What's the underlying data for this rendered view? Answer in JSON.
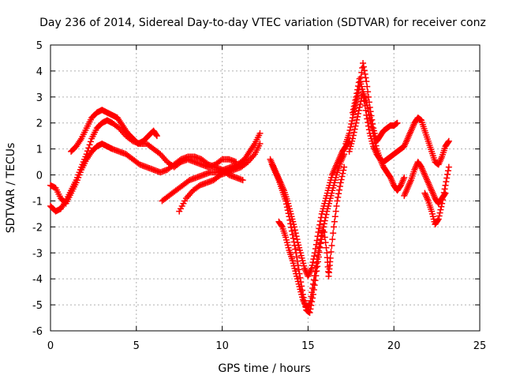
{
  "chart_data": {
    "type": "scatter",
    "title": "Day 236 of 2014, Sidereal Day-to-day VTEC variation (SDTVAR) for receiver conz",
    "xlabel": "GPS time / hours",
    "ylabel": "SDTVAR / TECUs",
    "xlim": [
      0,
      25
    ],
    "ylim": [
      -6,
      5
    ],
    "xticks": [
      0,
      5,
      10,
      15,
      20,
      25
    ],
    "yticks": [
      -6,
      -5,
      -4,
      -3,
      -2,
      -1,
      0,
      1,
      2,
      3,
      4,
      5
    ],
    "grid": true,
    "marker": "+",
    "color": "#ff0000",
    "series": [
      {
        "name": "s1",
        "points": [
          [
            0.0,
            -0.4
          ],
          [
            0.3,
            -0.5
          ],
          [
            0.6,
            -0.9
          ],
          [
            0.9,
            -1.1
          ],
          [
            1.2,
            -0.7
          ],
          [
            1.5,
            -0.3
          ],
          [
            1.8,
            0.2
          ],
          [
            2.1,
            0.6
          ],
          [
            2.4,
            0.9
          ],
          [
            2.7,
            1.1
          ],
          [
            3.0,
            1.2
          ],
          [
            3.3,
            1.1
          ],
          [
            3.6,
            1.0
          ],
          [
            4.0,
            0.9
          ],
          [
            4.4,
            0.8
          ],
          [
            4.8,
            0.6
          ],
          [
            5.2,
            0.4
          ],
          [
            5.6,
            0.3
          ],
          [
            6.0,
            0.2
          ],
          [
            6.4,
            0.1
          ],
          [
            6.8,
            0.2
          ],
          [
            7.2,
            0.4
          ],
          [
            7.6,
            0.6
          ],
          [
            8.0,
            0.7
          ],
          [
            8.4,
            0.7
          ],
          [
            8.8,
            0.6
          ],
          [
            9.2,
            0.4
          ],
          [
            9.6,
            0.3
          ],
          [
            10.0,
            0.2
          ],
          [
            10.4,
            0.0
          ],
          [
            10.8,
            -0.1
          ],
          [
            11.2,
            -0.2
          ]
        ]
      },
      {
        "name": "s2",
        "points": [
          [
            0.0,
            -1.2
          ],
          [
            0.3,
            -1.4
          ],
          [
            0.6,
            -1.3
          ],
          [
            0.9,
            -1.0
          ],
          [
            1.2,
            -0.6
          ],
          [
            1.5,
            -0.2
          ],
          [
            1.8,
            0.3
          ],
          [
            2.1,
            0.8
          ],
          [
            2.4,
            1.4
          ],
          [
            2.7,
            1.8
          ],
          [
            3.0,
            2.0
          ],
          [
            3.3,
            2.1
          ],
          [
            3.6,
            2.0
          ],
          [
            4.0,
            1.8
          ],
          [
            4.4,
            1.5
          ],
          [
            4.8,
            1.3
          ],
          [
            5.2,
            1.2
          ],
          [
            5.6,
            1.2
          ],
          [
            6.0,
            1.0
          ],
          [
            6.4,
            0.8
          ],
          [
            6.8,
            0.5
          ],
          [
            7.2,
            0.3
          ],
          [
            7.6,
            0.5
          ],
          [
            8.0,
            0.6
          ],
          [
            8.4,
            0.5
          ],
          [
            8.8,
            0.4
          ],
          [
            9.2,
            0.3
          ],
          [
            9.6,
            0.4
          ],
          [
            10.0,
            0.6
          ],
          [
            10.4,
            0.6
          ],
          [
            10.8,
            0.5
          ]
        ]
      },
      {
        "name": "s3",
        "points": [
          [
            1.2,
            0.9
          ],
          [
            1.5,
            1.1
          ],
          [
            1.8,
            1.4
          ],
          [
            2.1,
            1.8
          ],
          [
            2.4,
            2.2
          ],
          [
            2.7,
            2.4
          ],
          [
            3.0,
            2.5
          ],
          [
            3.3,
            2.4
          ],
          [
            3.6,
            2.3
          ],
          [
            3.9,
            2.2
          ],
          [
            4.2,
            1.9
          ],
          [
            4.5,
            1.6
          ],
          [
            4.8,
            1.4
          ],
          [
            5.1,
            1.2
          ],
          [
            5.4,
            1.3
          ],
          [
            5.7,
            1.5
          ],
          [
            6.0,
            1.7
          ],
          [
            6.2,
            1.5
          ]
        ]
      },
      {
        "name": "s4",
        "points": [
          [
            6.5,
            -1.0
          ],
          [
            6.9,
            -0.8
          ],
          [
            7.3,
            -0.6
          ],
          [
            7.7,
            -0.4
          ],
          [
            8.1,
            -0.2
          ],
          [
            8.5,
            -0.1
          ],
          [
            8.9,
            0.0
          ],
          [
            9.3,
            0.1
          ],
          [
            9.7,
            0.1
          ],
          [
            10.1,
            0.2
          ],
          [
            10.5,
            0.3
          ],
          [
            10.9,
            0.4
          ],
          [
            11.3,
            0.6
          ],
          [
            11.6,
            0.9
          ],
          [
            11.9,
            1.2
          ],
          [
            12.2,
            1.6
          ]
        ]
      },
      {
        "name": "s5",
        "points": [
          [
            7.5,
            -1.4
          ],
          [
            7.9,
            -0.9
          ],
          [
            8.3,
            -0.6
          ],
          [
            8.7,
            -0.4
          ],
          [
            9.1,
            -0.3
          ],
          [
            9.5,
            -0.2
          ],
          [
            9.9,
            0.0
          ],
          [
            10.3,
            0.1
          ],
          [
            10.7,
            0.2
          ],
          [
            11.1,
            0.3
          ],
          [
            11.5,
            0.5
          ],
          [
            11.9,
            0.8
          ],
          [
            12.2,
            1.2
          ]
        ]
      },
      {
        "name": "s6",
        "points": [
          [
            12.8,
            0.6
          ],
          [
            13.0,
            0.3
          ],
          [
            13.2,
            0.0
          ],
          [
            13.4,
            -0.3
          ],
          [
            13.6,
            -0.6
          ],
          [
            13.8,
            -1.0
          ],
          [
            14.0,
            -1.5
          ],
          [
            14.2,
            -2.0
          ],
          [
            14.4,
            -2.6
          ],
          [
            14.6,
            -3.1
          ],
          [
            14.8,
            -3.6
          ],
          [
            15.0,
            -3.9
          ],
          [
            15.2,
            -3.6
          ],
          [
            15.4,
            -3.0
          ],
          [
            15.6,
            -2.2
          ],
          [
            15.8,
            -1.5
          ],
          [
            16.0,
            -1.0
          ],
          [
            16.2,
            -0.5
          ],
          [
            16.4,
            0.0
          ],
          [
            16.6,
            0.3
          ],
          [
            16.8,
            0.6
          ],
          [
            17.0,
            0.9
          ],
          [
            17.2,
            1.1
          ],
          [
            17.4,
            1.3
          ]
        ]
      },
      {
        "name": "s7",
        "points": [
          [
            12.9,
            0.4
          ],
          [
            13.1,
            0.1
          ],
          [
            13.3,
            -0.2
          ],
          [
            13.5,
            -0.6
          ],
          [
            13.7,
            -1.0
          ],
          [
            13.9,
            -1.6
          ],
          [
            14.1,
            -2.3
          ],
          [
            14.3,
            -3.0
          ],
          [
            14.5,
            -3.8
          ],
          [
            14.7,
            -4.6
          ],
          [
            14.9,
            -5.2
          ],
          [
            15.1,
            -5.3
          ],
          [
            15.3,
            -4.6
          ],
          [
            15.5,
            -3.7
          ],
          [
            15.7,
            -2.8
          ],
          [
            15.9,
            -2.0
          ],
          [
            16.1,
            -1.4
          ],
          [
            16.3,
            -0.9
          ],
          [
            16.5,
            -0.4
          ],
          [
            16.7,
            0.1
          ],
          [
            16.9,
            0.5
          ],
          [
            17.1,
            0.8
          ]
        ]
      },
      {
        "name": "s8",
        "points": [
          [
            13.3,
            -1.8
          ],
          [
            13.5,
            -2.0
          ],
          [
            13.7,
            -2.4
          ],
          [
            13.9,
            -2.9
          ],
          [
            14.1,
            -3.3
          ],
          [
            14.3,
            -3.8
          ],
          [
            14.5,
            -4.3
          ],
          [
            14.7,
            -4.8
          ],
          [
            14.9,
            -5.1
          ],
          [
            15.1,
            -5.0
          ],
          [
            15.3,
            -4.2
          ],
          [
            15.5,
            -3.4
          ],
          [
            15.7,
            -2.6
          ],
          [
            15.9,
            -2.0
          ],
          [
            16.1,
            -3.0
          ],
          [
            16.2,
            -3.9
          ],
          [
            16.3,
            -3.2
          ],
          [
            16.5,
            -2.0
          ],
          [
            16.7,
            -1.0
          ],
          [
            16.9,
            -0.3
          ],
          [
            17.1,
            0.3
          ]
        ]
      },
      {
        "name": "s9",
        "points": [
          [
            17.2,
            1.2
          ],
          [
            17.4,
            1.6
          ],
          [
            17.6,
            2.2
          ],
          [
            17.8,
            2.8
          ],
          [
            18.0,
            3.4
          ],
          [
            18.2,
            4.3
          ],
          [
            18.4,
            3.6
          ],
          [
            18.6,
            2.6
          ],
          [
            18.8,
            1.8
          ],
          [
            19.0,
            1.3
          ],
          [
            19.2,
            1.5
          ],
          [
            19.4,
            1.7
          ],
          [
            19.6,
            1.8
          ],
          [
            19.8,
            1.9
          ],
          [
            20.0,
            1.9
          ],
          [
            20.2,
            2.0
          ]
        ]
      },
      {
        "name": "s10",
        "points": [
          [
            17.4,
            0.9
          ],
          [
            17.6,
            1.4
          ],
          [
            17.8,
            2.0
          ],
          [
            18.0,
            2.6
          ],
          [
            18.2,
            3.2
          ],
          [
            18.4,
            2.8
          ],
          [
            18.6,
            2.2
          ],
          [
            18.8,
            1.6
          ],
          [
            19.0,
            1.0
          ],
          [
            19.2,
            0.6
          ],
          [
            19.4,
            0.3
          ],
          [
            19.6,
            0.1
          ],
          [
            19.8,
            -0.1
          ],
          [
            20.0,
            -0.4
          ],
          [
            20.2,
            -0.6
          ],
          [
            20.4,
            -0.4
          ],
          [
            20.6,
            -0.1
          ]
        ]
      },
      {
        "name": "s11",
        "points": [
          [
            17.6,
            2.4
          ],
          [
            17.8,
            3.0
          ],
          [
            18.0,
            3.7
          ],
          [
            18.2,
            3.2
          ],
          [
            18.4,
            2.3
          ],
          [
            18.6,
            1.6
          ],
          [
            18.8,
            1.1
          ],
          [
            19.0,
            0.8
          ],
          [
            19.2,
            0.6
          ],
          [
            19.4,
            0.5
          ],
          [
            19.6,
            0.6
          ],
          [
            19.8,
            0.7
          ],
          [
            20.0,
            0.8
          ],
          [
            20.2,
            0.9
          ],
          [
            20.4,
            1.0
          ],
          [
            20.6,
            1.1
          ],
          [
            20.8,
            1.4
          ],
          [
            21.0,
            1.7
          ],
          [
            21.2,
            2.0
          ],
          [
            21.4,
            2.2
          ],
          [
            21.6,
            2.1
          ],
          [
            21.8,
            1.7
          ],
          [
            22.0,
            1.3
          ],
          [
            22.2,
            0.9
          ],
          [
            22.4,
            0.5
          ],
          [
            22.6,
            0.4
          ],
          [
            22.8,
            0.7
          ],
          [
            23.0,
            1.1
          ],
          [
            23.2,
            1.3
          ]
        ]
      },
      {
        "name": "s12",
        "points": [
          [
            20.6,
            -0.8
          ],
          [
            20.8,
            -0.5
          ],
          [
            21.0,
            -0.2
          ],
          [
            21.2,
            0.2
          ],
          [
            21.4,
            0.5
          ],
          [
            21.6,
            0.3
          ],
          [
            21.8,
            0.0
          ],
          [
            22.0,
            -0.3
          ],
          [
            22.2,
            -0.6
          ],
          [
            22.4,
            -0.9
          ],
          [
            22.6,
            -1.1
          ],
          [
            22.8,
            -0.9
          ],
          [
            23.0,
            -0.7
          ]
        ]
      },
      {
        "name": "s13",
        "points": [
          [
            21.8,
            -0.7
          ],
          [
            22.0,
            -1.0
          ],
          [
            22.2,
            -1.4
          ],
          [
            22.4,
            -1.9
          ],
          [
            22.6,
            -1.7
          ],
          [
            22.8,
            -1.1
          ],
          [
            23.0,
            -0.4
          ],
          [
            23.2,
            0.3
          ]
        ]
      }
    ]
  }
}
